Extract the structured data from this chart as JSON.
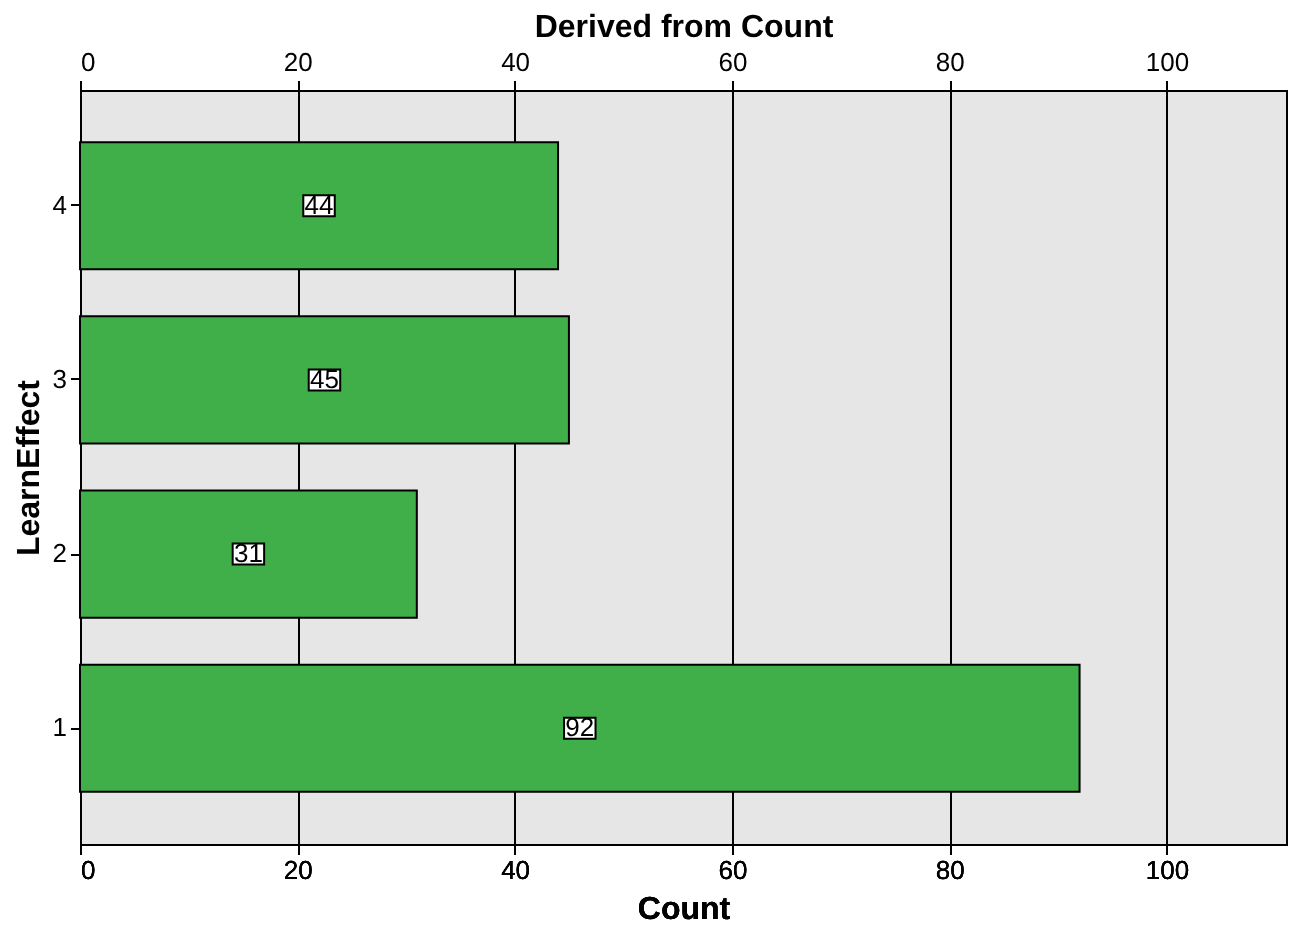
{
  "chart_data": {
    "type": "bar",
    "orientation": "horizontal",
    "xlabel": "Count",
    "x2label": "Derived from Count",
    "ylabel": "LearnEffect",
    "categories": [
      "4",
      "3",
      "2",
      "1"
    ],
    "values": [
      44,
      45,
      31,
      92
    ],
    "color": "#40ae49",
    "xlim": [
      0,
      111
    ],
    "xticks": [
      0,
      20,
      40,
      60,
      80,
      100
    ],
    "x2lim": [
      0,
      111
    ],
    "x2ticks": [
      0,
      20,
      40,
      60,
      80,
      100
    ],
    "grid": "x",
    "data_labels": true
  }
}
